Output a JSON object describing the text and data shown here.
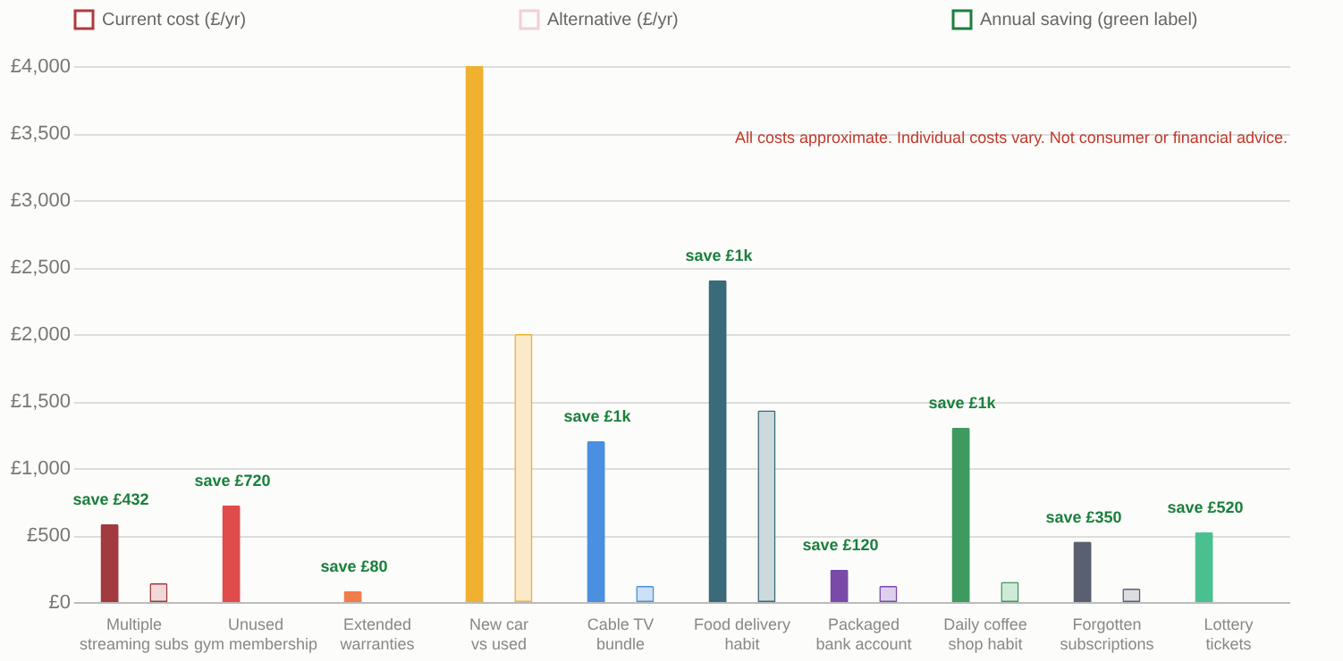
{
  "chart_data": {
    "type": "bar",
    "categories": [
      "Multiple\nstreaming subs",
      "Unused\ngym membership",
      "Extended\nwarranties",
      "New car\nvs used",
      "Cable TV\nbundle",
      "Food delivery\nhabit",
      "Packaged\nbank account",
      "Daily coffee\nshop habit",
      "Forgotten\nsubscriptions",
      "Lottery\ntickets"
    ],
    "series": [
      {
        "name": "Current cost (£/yr)",
        "color": "#b03a3f",
        "values": [
          580,
          720,
          80,
          4000,
          1200,
          2400,
          240,
          1300,
          450,
          520
        ],
        "value_labels": [
          "save £432",
          "save £720",
          "save £80",
          null,
          "save £1k",
          "save £1k",
          "save £120",
          "save £1k",
          "save £350",
          "save £520"
        ],
        "colors": [
          "#a33a3f",
          "#e04b4b",
          "#f07c4a",
          "#f0b030",
          "#4a8fe0",
          "#3a6b7a",
          "#7a4aa8",
          "#3f9a60",
          "#5a6070",
          "#4ac090"
        ]
      },
      {
        "name": "Alternative (£/yr)",
        "color": "#f0d0d4",
        "values": [
          140,
          null,
          null,
          2000,
          120,
          1430,
          120,
          150,
          100,
          null
        ],
        "colors": [
          "#f0d8d8",
          "#f7dede",
          "#fbe1d6",
          "#fbe9c8",
          "#cde0f5",
          "#ccd9dd",
          "#ddd0ec",
          "#d0ead8",
          "#dcdde2",
          "#d3f0e3"
        ]
      },
      {
        "name": "Annual saving (green label)",
        "color": "#1a7f3c",
        "values": [
          null,
          null,
          null,
          null,
          null,
          null,
          null,
          null,
          null,
          null
        ]
      }
    ],
    "ylim": [
      0,
      4000
    ],
    "yticks": [
      {
        "value": 0,
        "label": "£0"
      },
      {
        "value": 500,
        "label": "£500"
      },
      {
        "value": 1000,
        "label": "£1,000"
      },
      {
        "value": 1500,
        "label": "£1,500"
      },
      {
        "value": 2000,
        "label": "£2,000"
      },
      {
        "value": 2500,
        "label": "£2,500"
      },
      {
        "value": 3000,
        "label": "£3,000"
      },
      {
        "value": 3500,
        "label": "£3,500"
      },
      {
        "value": 4000,
        "label": "£4,000"
      }
    ],
    "grid": "y",
    "legend": "top",
    "annotations": [
      "All costs approximate. Individual costs vary. Not consumer or financial advice."
    ]
  }
}
